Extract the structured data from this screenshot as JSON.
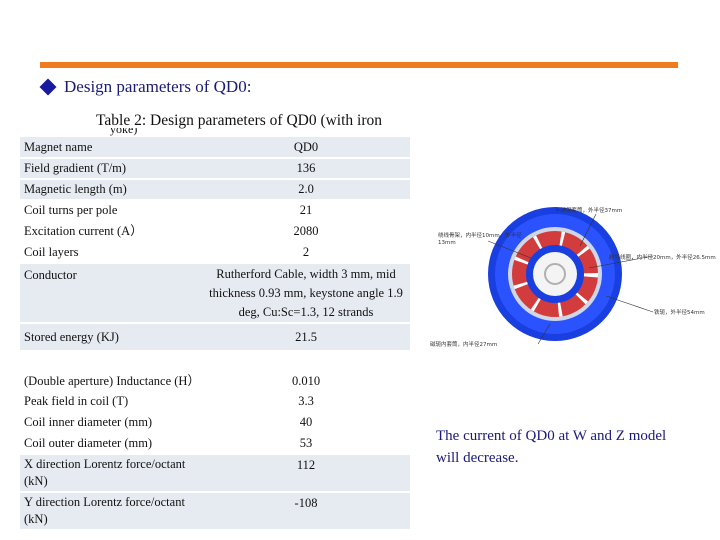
{
  "header": {
    "title": "Design parameters of QD0:",
    "accent_color": "#f07a1e",
    "bullet_icon": "diamond-bullet-icon"
  },
  "table": {
    "caption": "Table 2: Design parameters of QD0 (with iron",
    "caption_cut": "yoke)",
    "rows": [
      {
        "label": "Magnet name",
        "value": "QD0"
      },
      {
        "label": "Field gradient (T/m)",
        "value": "136"
      },
      {
        "label": "Magnetic length (m)",
        "value": "2.0"
      },
      {
        "label": "Coil turns per pole",
        "value": "21"
      },
      {
        "label": "Excitation current (A）",
        "value": "2080"
      },
      {
        "label": "Coil layers",
        "value": "2"
      },
      {
        "label": "Conductor",
        "value": "Rutherford Cable, width 3 mm, mid thickness 0.93 mm, keystone angle 1.9 deg, Cu:Sc=1.3, 12 strands"
      },
      {
        "label": "Stored energy (KJ)",
        "value": "21.5"
      },
      {
        "label": "(Double aperture) Inductance (H）",
        "value": "0.010"
      },
      {
        "label": "Peak field in coil (T)",
        "value": "3.3"
      },
      {
        "label": "Coil inner diameter (mm)",
        "value": "40"
      },
      {
        "label": "Coil outer diameter (mm)",
        "value": "53"
      },
      {
        "label": "X direction Lorentz force/octant (kN)",
        "value": "112"
      },
      {
        "label": "Y direction Lorentz force/octant (kN)",
        "value": "-108"
      }
    ]
  },
  "diagram": {
    "labels": {
      "top_right": "不锈钢套筒，外半径37mm",
      "left_1": "绕线骨架，内半径10mm，外半径",
      "left_2": "13mm",
      "right_mid": "超导线圈，内半径20mm，外半径26.5mm",
      "right_low": "铁轭，外半径54mm",
      "bottom": "磁轭内套筒，内半径27mm"
    },
    "colors": {
      "yoke": "#1a3fe0",
      "coil": "#d23c3c",
      "sleeve": "#cfd6e6",
      "inner": "#f4f4f4"
    }
  },
  "note": {
    "text": "The current of QD0 at W and Z model will decrease."
  }
}
